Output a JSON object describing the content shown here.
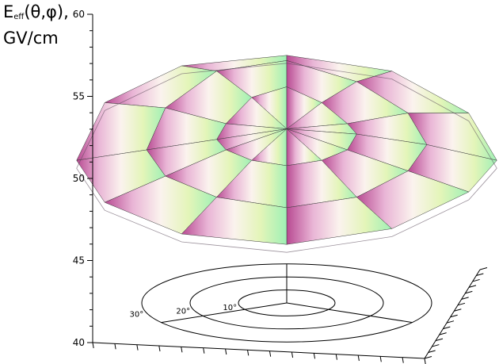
{
  "chart_data": {
    "type": "surface3d",
    "title": "",
    "zlabel": {
      "main": "E",
      "sub": "eff",
      "args": "(θ,φ),",
      "unit": "GV/cm"
    },
    "zlim": [
      40,
      60
    ],
    "z_ticks": [
      "40",
      "45",
      "50",
      "55",
      "60"
    ],
    "polar_rings_deg": [
      10,
      20,
      30
    ],
    "polar_ring_labels": [
      "10°",
      "20°",
      "30°"
    ],
    "azimuth_spokes_deg": [
      90,
      210,
      330
    ],
    "series": [
      {
        "theta_deg": [
          0,
          10,
          20,
          30
        ],
        "phi_deg": [
          0,
          30,
          60,
          90,
          120,
          150,
          180,
          210,
          240,
          270,
          300,
          330
        ],
        "values": [
          [
            50.4,
            50.4,
            50.4,
            50.4,
            50.4,
            50.4,
            50.4,
            50.4,
            50.4,
            50.4,
            50.4,
            50.4
          ],
          [
            50.3,
            50.5,
            50.9,
            51.2,
            51.0,
            50.5,
            50.2,
            50.0,
            49.8,
            49.7,
            49.8,
            50.0
          ],
          [
            50.1,
            50.7,
            51.3,
            51.7,
            51.5,
            50.8,
            50.0,
            49.5,
            49.1,
            48.9,
            49.1,
            49.6
          ],
          [
            49.8,
            50.7,
            51.5,
            51.8,
            51.6,
            50.9,
            49.8,
            49.0,
            48.4,
            48.2,
            48.5,
            49.2
          ]
        ]
      }
    ]
  }
}
